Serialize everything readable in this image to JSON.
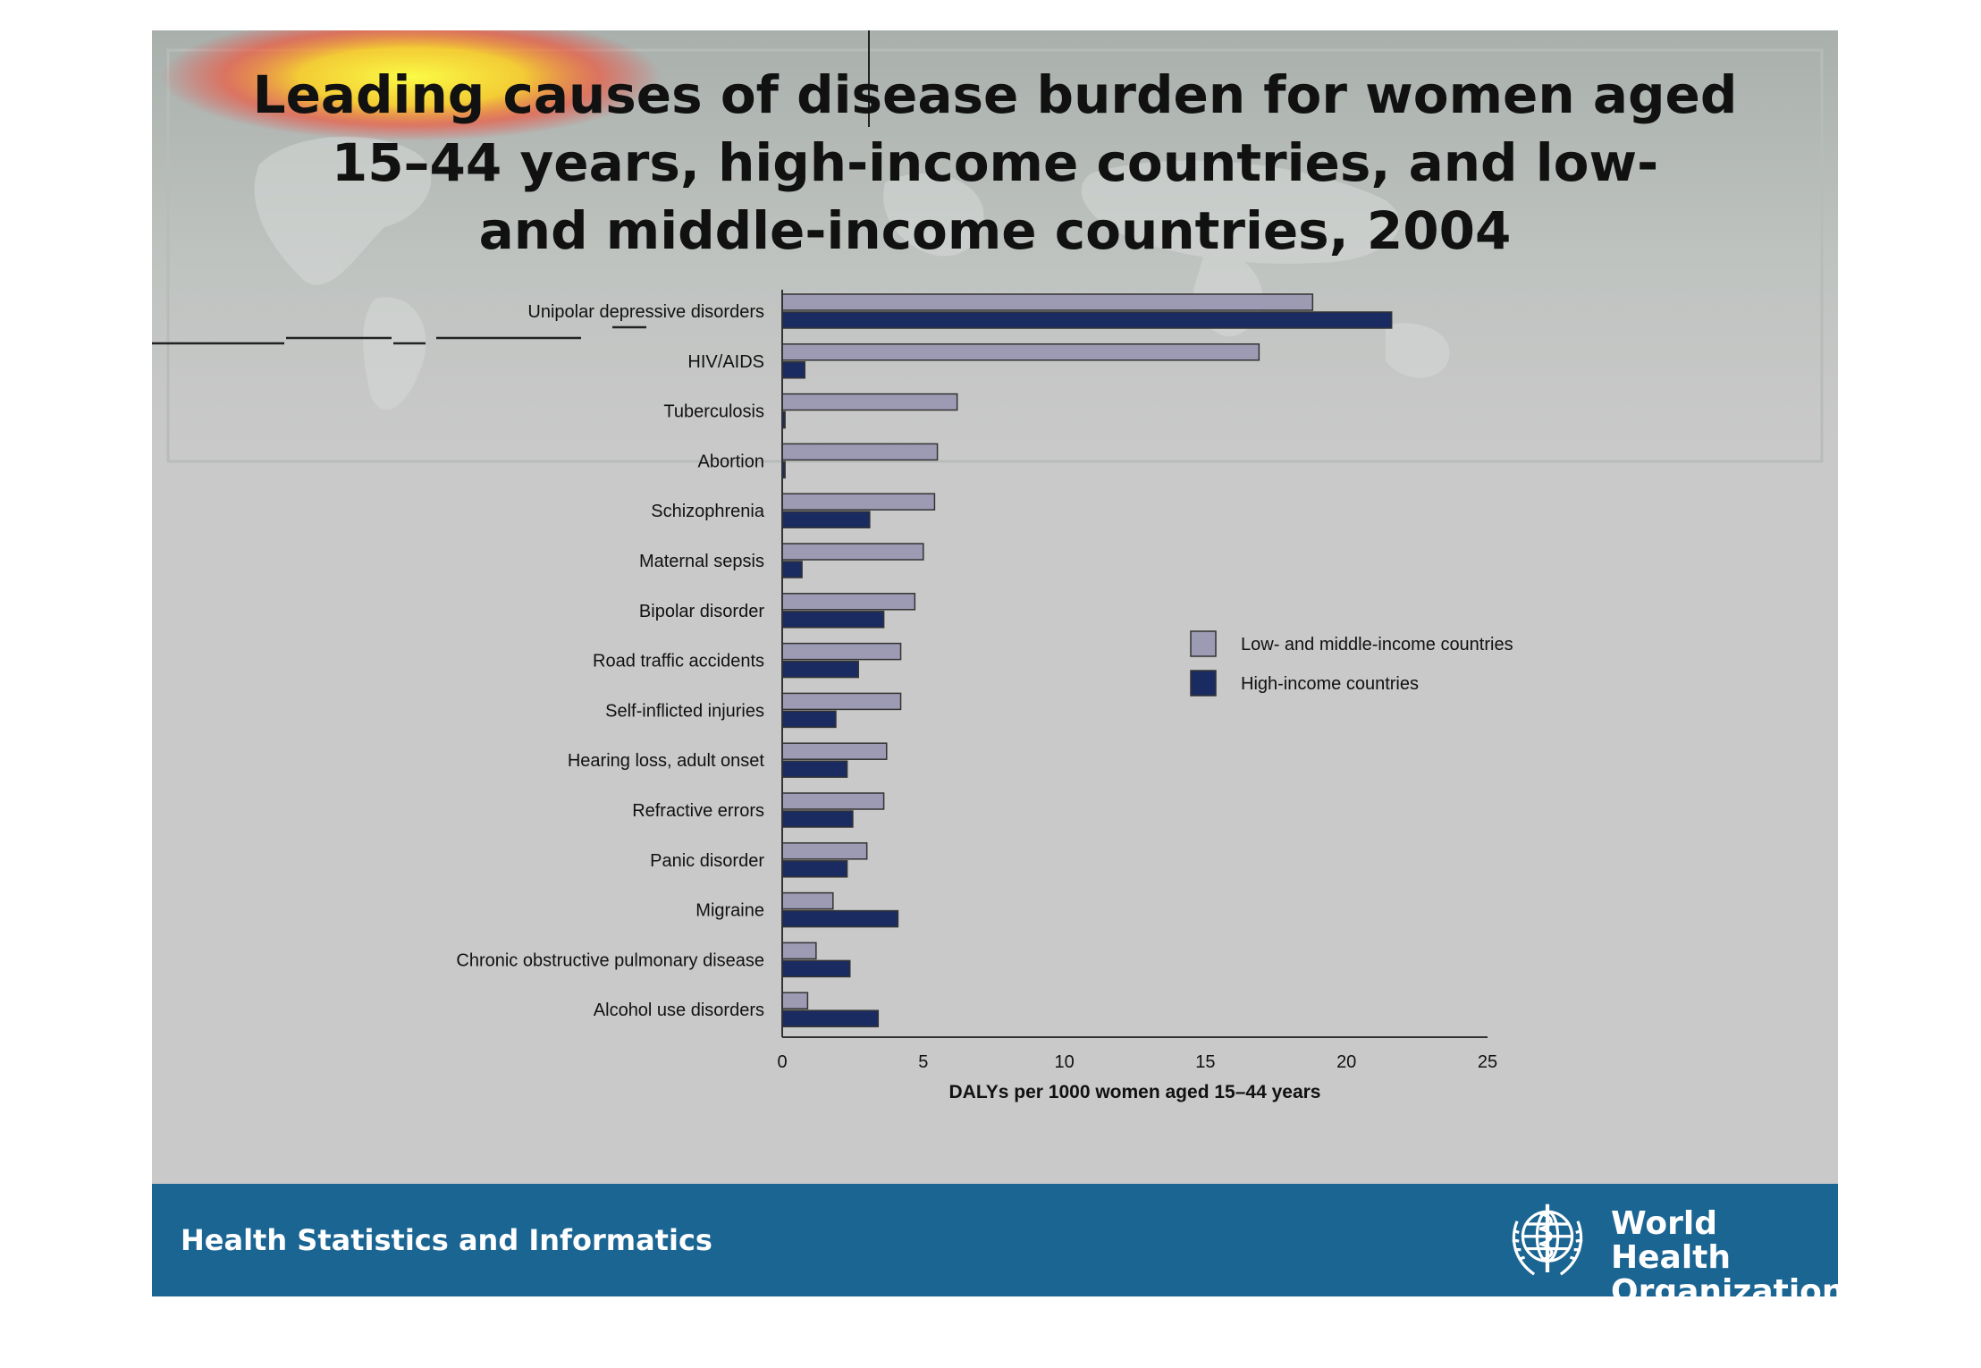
{
  "slide": {
    "title_lines": [
      "Leading causes of disease burden for women aged",
      "15–44 years, high-income countries, and low-",
      "and middle-income countries, 2004"
    ]
  },
  "footer": {
    "left_text": "Health Statistics and Informatics",
    "org_name_lines": [
      "World Health",
      "Organization"
    ]
  },
  "colors": {
    "low_middle": "#9d9bb3",
    "high": "#1a2b62",
    "slide_bg": "#c9c9c9",
    "footer_bg": "#1b6593"
  },
  "chart_data": {
    "type": "bar",
    "orientation": "horizontal",
    "categories": [
      "Unipolar depressive disorders",
      "HIV/AIDS",
      "Tuberculosis",
      "Abortion",
      "Schizophrenia",
      "Maternal sepsis",
      "Bipolar disorder",
      "Road traffic accidents",
      "Self-inflicted injuries",
      "Hearing loss, adult onset",
      "Refractive errors",
      "Panic disorder",
      "Migraine",
      "Chronic obstructive pulmonary disease",
      "Alcohol use disorders"
    ],
    "series": [
      {
        "name": "Low- and middle-income countries",
        "color": "#9d9bb3",
        "values": [
          18.8,
          16.9,
          6.2,
          5.5,
          5.4,
          5.0,
          4.7,
          4.2,
          4.2,
          3.7,
          3.6,
          3.0,
          1.8,
          1.2,
          0.9
        ]
      },
      {
        "name": "High-income countries",
        "color": "#1a2b62",
        "values": [
          21.6,
          0.8,
          0.1,
          0.1,
          3.1,
          0.7,
          3.6,
          2.7,
          1.9,
          2.3,
          2.5,
          2.3,
          4.1,
          2.4,
          3.4
        ]
      }
    ],
    "xlabel": "DALYs per 1000 women aged 15–44 years",
    "xlim": [
      0,
      25
    ],
    "xticks": [
      0,
      5,
      10,
      15,
      20,
      25
    ],
    "grid": false,
    "legend_position": "right"
  }
}
